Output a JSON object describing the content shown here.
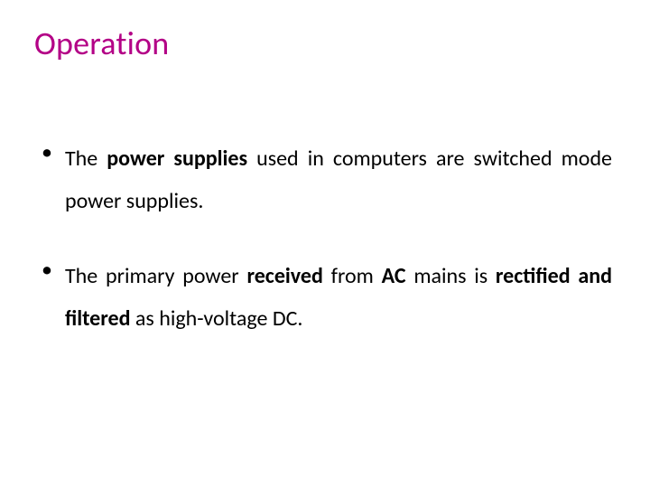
{
  "colors": {
    "title": "#b30086",
    "body": "#000000",
    "bullet": "#000000",
    "background": "#ffffff"
  },
  "typography": {
    "title_fontsize": 36,
    "body_fontsize": 24,
    "line_height": 47
  },
  "title": "Operation",
  "bullets": [
    {
      "runs": [
        {
          "text": "The ",
          "bold": false
        },
        {
          "text": "power supplies ",
          "bold": true
        },
        {
          "text": "used in computers are switched mode power supplies.",
          "bold": false
        }
      ]
    },
    {
      "runs": [
        {
          "text": "The primary power ",
          "bold": false
        },
        {
          "text": "received ",
          "bold": true
        },
        {
          "text": "from ",
          "bold": false
        },
        {
          "text": "AC ",
          "bold": true
        },
        {
          "text": "mains is ",
          "bold": false
        },
        {
          "text": "rectified and filtered ",
          "bold": true
        },
        {
          "text": "as high-voltage DC.",
          "bold": false
        }
      ]
    }
  ]
}
